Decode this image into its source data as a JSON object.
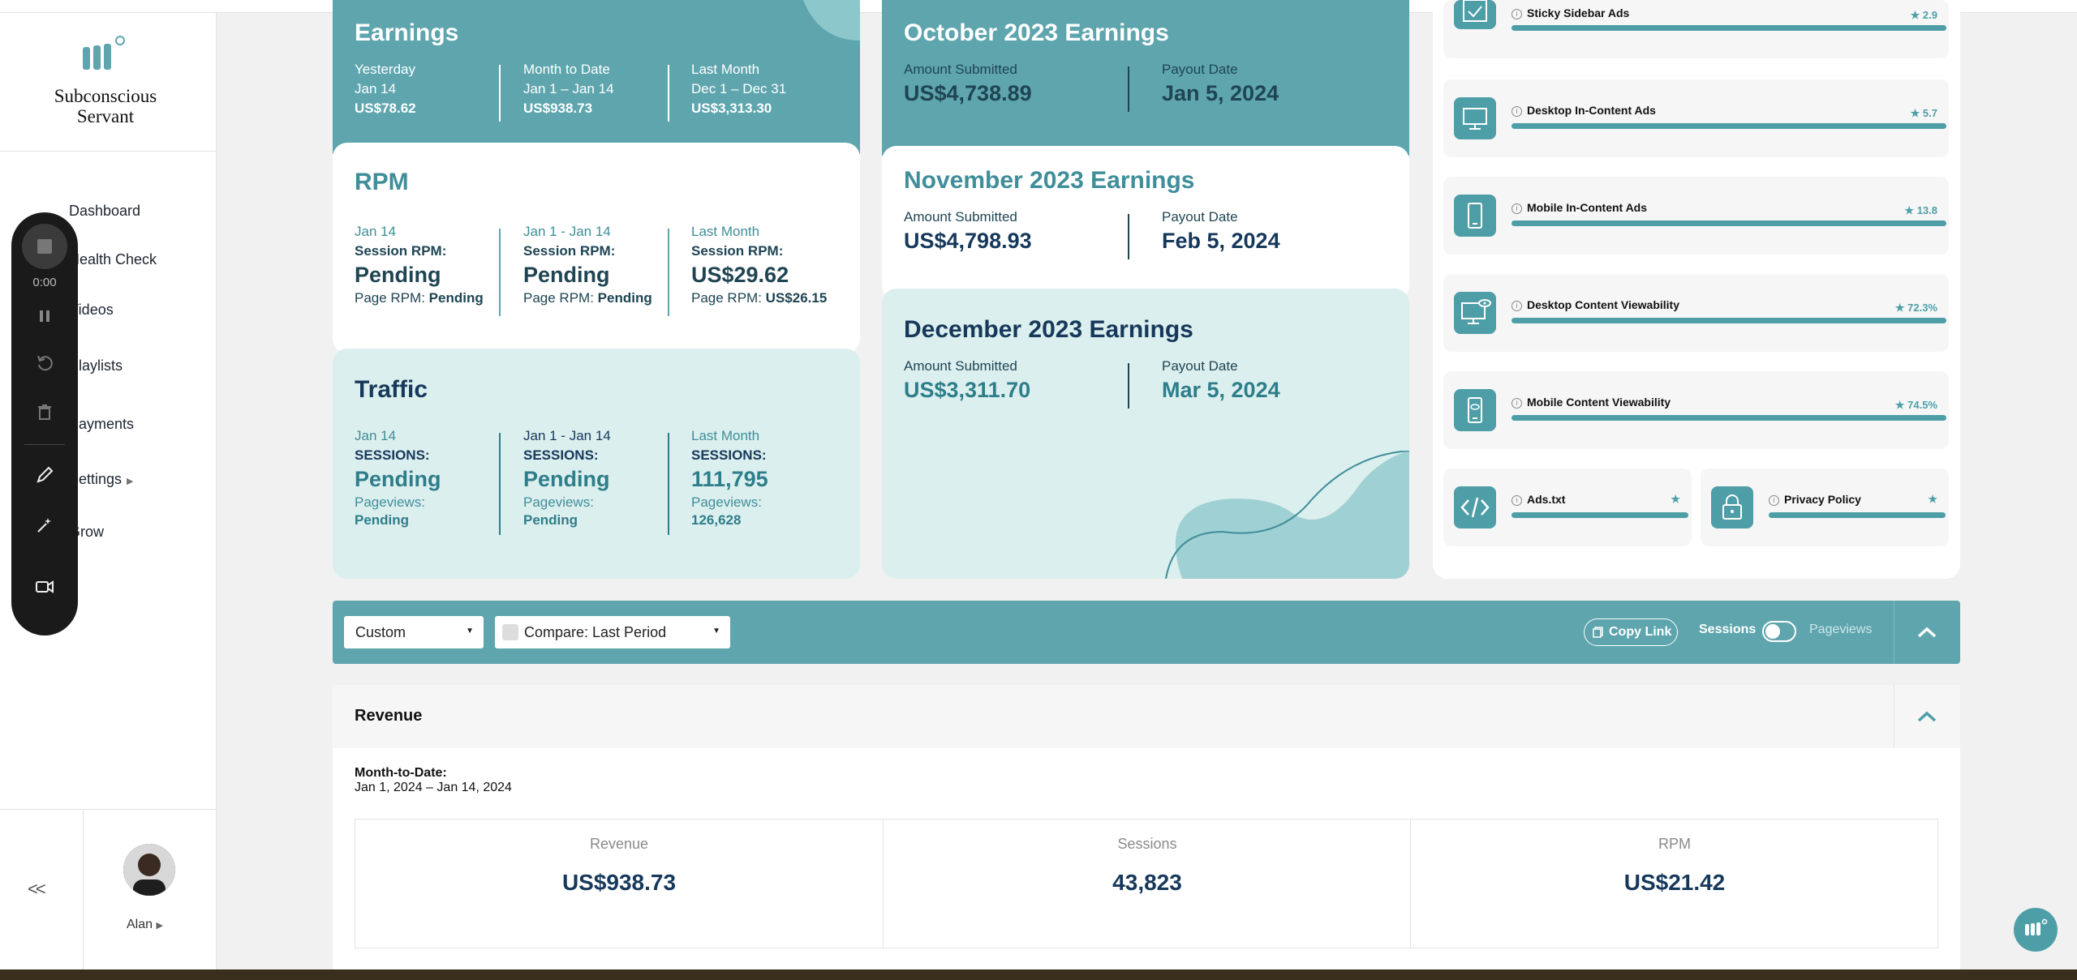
{
  "brand": {
    "name": "Subconscious Servant"
  },
  "nav": {
    "items": [
      {
        "label": "Dashboard"
      },
      {
        "label": "Health Check"
      },
      {
        "label": "Videos"
      },
      {
        "label": "Playlists"
      },
      {
        "label": "Payments"
      },
      {
        "label": "Settings"
      },
      {
        "label": "Grow"
      }
    ],
    "collapse": "<<",
    "user": "Alan"
  },
  "recorder": {
    "time": "0:00"
  },
  "earnings": {
    "title": "Earnings",
    "cols": [
      {
        "label": "Yesterday",
        "range": "Jan 14",
        "value": "US$78.62"
      },
      {
        "label": "Month to Date",
        "range": "Jan 1 – Jan 14",
        "value": "US$938.73"
      },
      {
        "label": "Last Month",
        "range": "Dec 1 – Dec 31",
        "value": "US$3,313.30"
      }
    ]
  },
  "rpm": {
    "title": "RPM",
    "cols": [
      {
        "label": "Jan 14",
        "session_label": "Session RPM:",
        "session_value": "Pending",
        "page_label": "Page RPM:",
        "page_value": "Pending"
      },
      {
        "label": "Jan 1 - Jan 14",
        "session_label": "Session RPM:",
        "session_value": "Pending",
        "page_label": "Page RPM:",
        "page_value": "Pending"
      },
      {
        "label": "Last Month",
        "session_label": "Session RPM:",
        "session_value": "US$29.62",
        "page_label": "Page RPM:",
        "page_value": "US$26.15"
      }
    ]
  },
  "traffic": {
    "title": "Traffic",
    "cols": [
      {
        "label": "Jan 14",
        "sessions_label": "SESSIONS:",
        "sessions_value": "Pending",
        "pv_label": "Pageviews:",
        "pv_value": "Pending"
      },
      {
        "label": "Jan 1 - Jan 14",
        "sessions_label": "SESSIONS:",
        "sessions_value": "Pending",
        "pv_label": "Pageviews:",
        "pv_value": "Pending"
      },
      {
        "label": "Last Month",
        "sessions_label": "SESSIONS:",
        "sessions_value": "111,795",
        "pv_label": "Pageviews:",
        "pv_value": "126,628"
      }
    ]
  },
  "payouts": [
    {
      "title": "October 2023 Earnings",
      "amount_label": "Amount Submitted",
      "amount": "US$4,738.89",
      "date_label": "Payout Date",
      "date": "Jan 5, 2024"
    },
    {
      "title": "November 2023 Earnings",
      "amount_label": "Amount Submitted",
      "amount": "US$4,798.93",
      "date_label": "Payout Date",
      "date": "Feb 5, 2024"
    },
    {
      "title": "December 2023 Earnings",
      "amount_label": "Amount Submitted",
      "amount": "US$3,311.70",
      "date_label": "Payout Date",
      "date": "Mar 5, 2024"
    }
  ],
  "scores": [
    {
      "name": "Sticky Sidebar Ads",
      "score": "2.9",
      "icon": "sticky-sidebar-icon"
    },
    {
      "name": "Desktop In-Content Ads",
      "score": "5.7",
      "icon": "desktop-icon"
    },
    {
      "name": "Mobile In-Content Ads",
      "score": "13.8",
      "icon": "mobile-icon"
    },
    {
      "name": "Desktop Content Viewability",
      "score": "72.3%",
      "icon": "desktop-eye-icon"
    },
    {
      "name": "Mobile Content Viewability",
      "score": "74.5%",
      "icon": "mobile-eye-icon"
    },
    {
      "name": "Ads.txt",
      "score": "",
      "icon": "code-icon"
    },
    {
      "name": "Privacy Policy",
      "score": "",
      "icon": "lock-icon"
    }
  ],
  "filters": {
    "range": "Custom",
    "compare": "Compare: Last Period",
    "copy_link": "Copy Link",
    "sessions": "Sessions",
    "pageviews": "Pageviews"
  },
  "revenue": {
    "title": "Revenue",
    "mtd_label": "Month-to-Date:",
    "mtd_range": "Jan 1, 2024 – Jan 14, 2024",
    "cells": [
      {
        "label": "Revenue",
        "value": "US$938.73"
      },
      {
        "label": "Sessions",
        "value": "43,823"
      },
      {
        "label": "RPM",
        "value": "US$21.42"
      }
    ]
  },
  "colors": {
    "accent": "#5ea5ae",
    "navy": "#16385a",
    "light": "#dcefef"
  }
}
